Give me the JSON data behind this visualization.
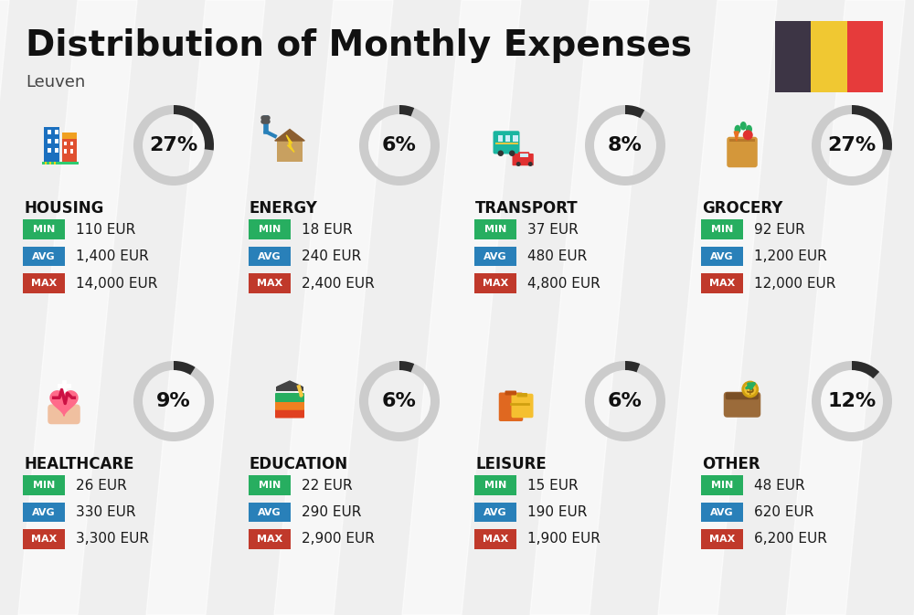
{
  "title": "Distribution of Monthly Expenses",
  "subtitle": "Leuven",
  "background_color": "#efefef",
  "categories": [
    {
      "name": "HOUSING",
      "percent": 27,
      "min_val": "110 EUR",
      "avg_val": "1,400 EUR",
      "max_val": "14,000 EUR",
      "row": 0,
      "col": 0
    },
    {
      "name": "ENERGY",
      "percent": 6,
      "min_val": "18 EUR",
      "avg_val": "240 EUR",
      "max_val": "2,400 EUR",
      "row": 0,
      "col": 1
    },
    {
      "name": "TRANSPORT",
      "percent": 8,
      "min_val": "37 EUR",
      "avg_val": "480 EUR",
      "max_val": "4,800 EUR",
      "row": 0,
      "col": 2
    },
    {
      "name": "GROCERY",
      "percent": 27,
      "min_val": "92 EUR",
      "avg_val": "1,200 EUR",
      "max_val": "12,000 EUR",
      "row": 0,
      "col": 3
    },
    {
      "name": "HEALTHCARE",
      "percent": 9,
      "min_val": "26 EUR",
      "avg_val": "330 EUR",
      "max_val": "3,300 EUR",
      "row": 1,
      "col": 0
    },
    {
      "name": "EDUCATION",
      "percent": 6,
      "min_val": "22 EUR",
      "avg_val": "290 EUR",
      "max_val": "2,900 EUR",
      "row": 1,
      "col": 1
    },
    {
      "name": "LEISURE",
      "percent": 6,
      "min_val": "15 EUR",
      "avg_val": "190 EUR",
      "max_val": "1,900 EUR",
      "row": 1,
      "col": 2
    },
    {
      "name": "OTHER",
      "percent": 12,
      "min_val": "48 EUR",
      "avg_val": "620 EUR",
      "max_val": "6,200 EUR",
      "row": 1,
      "col": 3
    }
  ],
  "min_color": "#27ae60",
  "avg_color": "#2980b9",
  "max_color": "#c0392b",
  "label_color_text": "#ffffff",
  "ring_dark": "#2c2c2c",
  "ring_light": "#cccccc",
  "flag_colors": [
    "#3d3545",
    "#f0c832",
    "#e63b3b"
  ],
  "title_fontsize": 28,
  "subtitle_fontsize": 13,
  "category_fontsize": 12,
  "value_fontsize": 11,
  "percent_fontsize": 16
}
